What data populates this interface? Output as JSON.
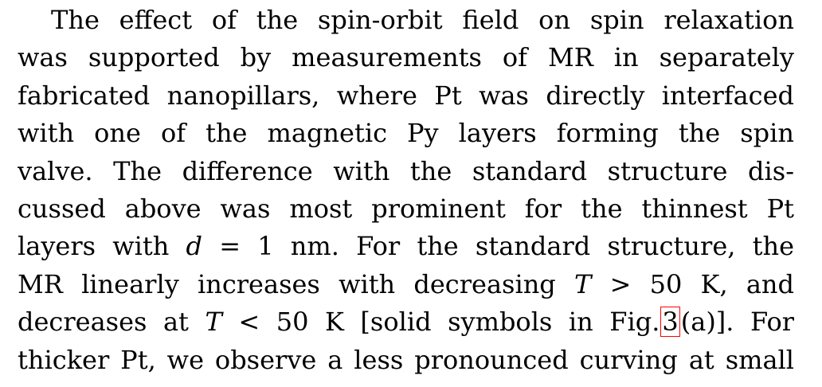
{
  "paragraph": {
    "line1": "The effect of the spin-orbit field on spin relaxation",
    "line2": "was supported by measurements of MR in separately",
    "line3": "fabricated nanopillars, where Pt was directly interfaced",
    "line4": "with one of the magnetic Py layers forming the spin",
    "line5": "valve. The difference with the standard structure dis-",
    "line6": "cussed above was most prominent for the thinnest Pt",
    "line7": {
      "a": "layers with",
      "var": "d",
      "b": "= 1 nm. For the standard structure, the"
    },
    "line8": {
      "a": "MR linearly increases with decreasing",
      "var": "T",
      "b": "> 50 K, and"
    },
    "line9": {
      "a": "decreases at",
      "var": "T",
      "b": "< 50 K [solid symbols in Fig.",
      "ref": "3",
      "c": "(a)]. For"
    },
    "line10": "thicker Pt, we observe a less pronounced curving at small"
  }
}
